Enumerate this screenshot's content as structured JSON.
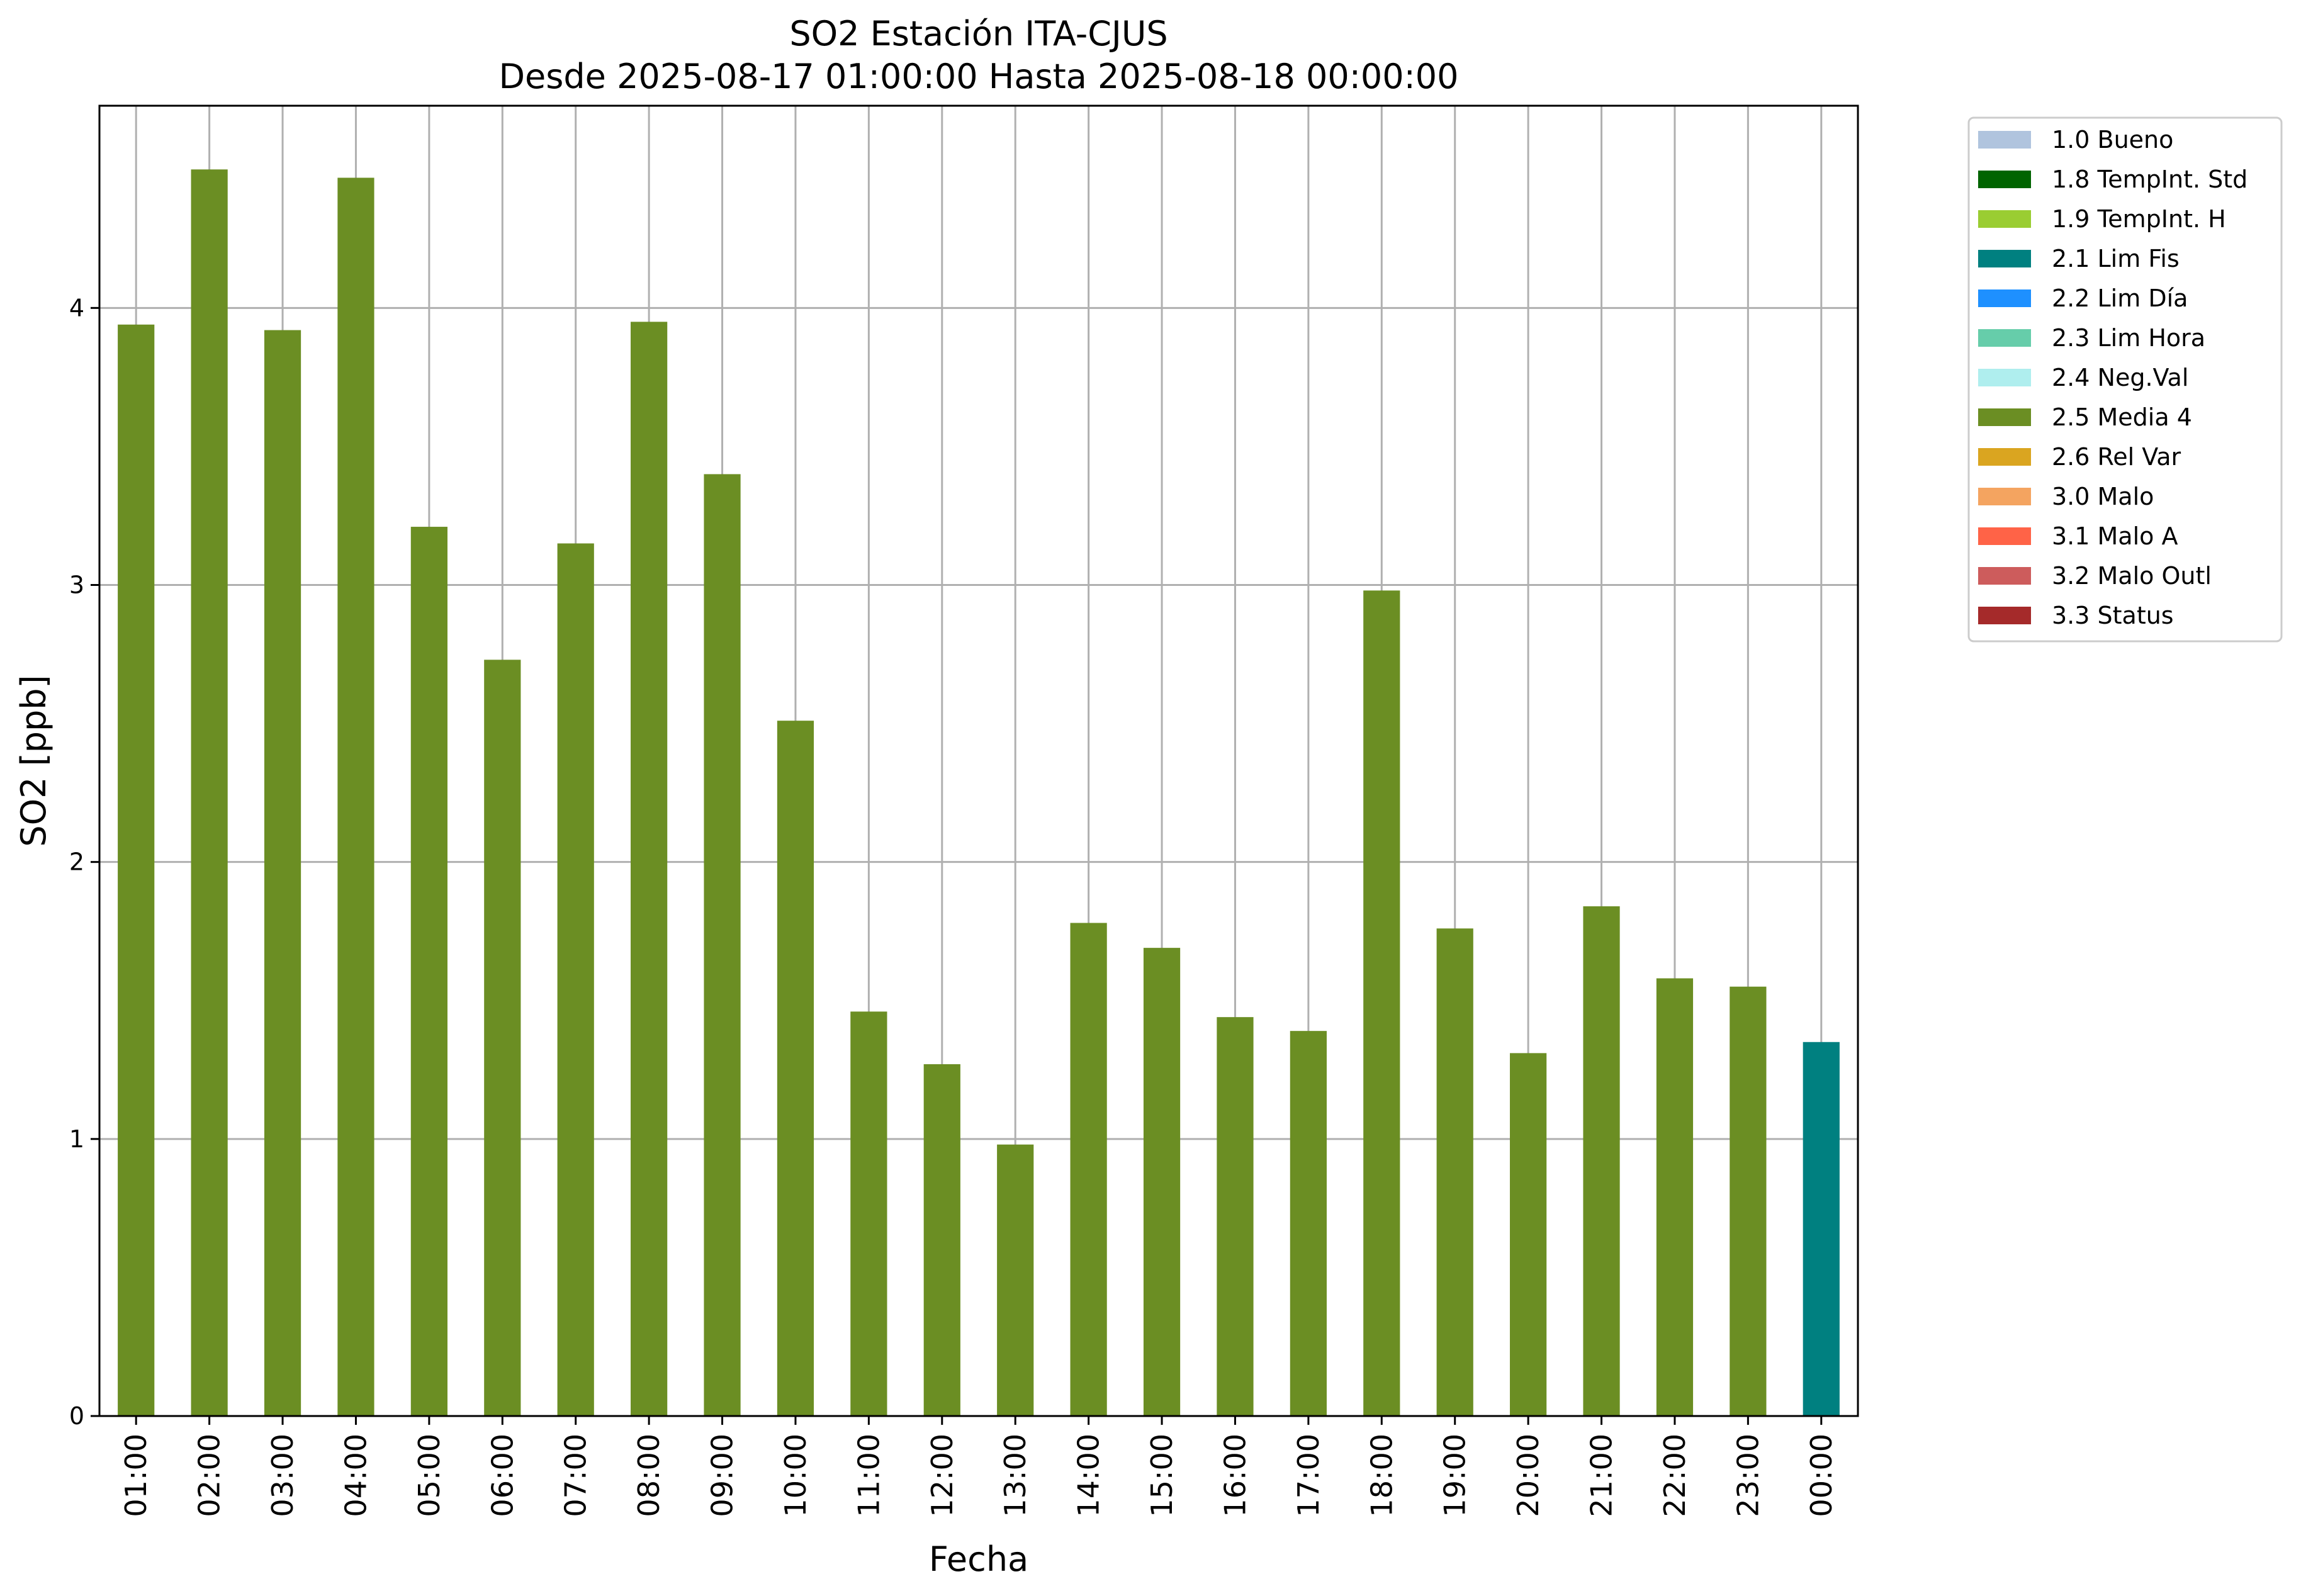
{
  "chart_data": {
    "type": "bar",
    "title": "SO2 Estación ITA-CJUS",
    "subtitle": "Desde 2025-08-17 01:00:00 Hasta 2025-08-18 00:00:00",
    "xlabel": "Fecha",
    "ylabel": "SO2 [ppb]",
    "ylim": [
      0,
      4.73
    ],
    "yticks": [
      "0",
      "1",
      "2",
      "3",
      "4"
    ],
    "grid": true,
    "legend_position": "outside top-right",
    "categories": [
      "01:00",
      "02:00",
      "03:00",
      "04:00",
      "05:00",
      "06:00",
      "07:00",
      "08:00",
      "09:00",
      "10:00",
      "11:00",
      "12:00",
      "13:00",
      "14:00",
      "15:00",
      "16:00",
      "17:00",
      "18:00",
      "19:00",
      "20:00",
      "21:00",
      "22:00",
      "23:00",
      "00:00"
    ],
    "values": [
      3.94,
      4.5,
      3.92,
      4.47,
      3.21,
      2.73,
      3.15,
      3.95,
      3.4,
      2.51,
      1.46,
      1.27,
      0.98,
      1.78,
      1.69,
      1.44,
      1.39,
      2.98,
      1.76,
      1.31,
      1.84,
      1.58,
      1.55,
      1.35
    ],
    "flags": [
      "2.5 Media 4",
      "2.5 Media 4",
      "2.5 Media 4",
      "2.5 Media 4",
      "2.5 Media 4",
      "2.5 Media 4",
      "2.5 Media 4",
      "2.5 Media 4",
      "2.5 Media 4",
      "2.5 Media 4",
      "2.5 Media 4",
      "2.5 Media 4",
      "2.5 Media 4",
      "2.5 Media 4",
      "2.5 Media 4",
      "2.5 Media 4",
      "2.5 Media 4",
      "2.5 Media 4",
      "2.5 Media 4",
      "2.5 Media 4",
      "2.5 Media 4",
      "2.5 Media 4",
      "2.5 Media 4",
      "2.1 Lim Fis"
    ],
    "legend": [
      {
        "label": "1.0 Bueno",
        "color": "#b0c4de"
      },
      {
        "label": "1.8 TempInt. Std",
        "color": "#006400"
      },
      {
        "label": "1.9 TempInt. H",
        "color": "#9acd32"
      },
      {
        "label": "2.1 Lim Fis",
        "color": "#008080"
      },
      {
        "label": "2.2 Lim Día",
        "color": "#1e90ff"
      },
      {
        "label": "2.3 Lim Hora",
        "color": "#66cdaa"
      },
      {
        "label": "2.4 Neg.Val",
        "color": "#afeeee"
      },
      {
        "label": "2.5 Media 4",
        "color": "#6b8e23"
      },
      {
        "label": "2.6 Rel Var",
        "color": "#daa520"
      },
      {
        "label": "3.0 Malo",
        "color": "#f4a460"
      },
      {
        "label": "3.1 Malo A",
        "color": "#ff6347"
      },
      {
        "label": "3.2 Malo Outl",
        "color": "#cd5c5c"
      },
      {
        "label": "3.3 Status",
        "color": "#a52a2a"
      }
    ]
  }
}
